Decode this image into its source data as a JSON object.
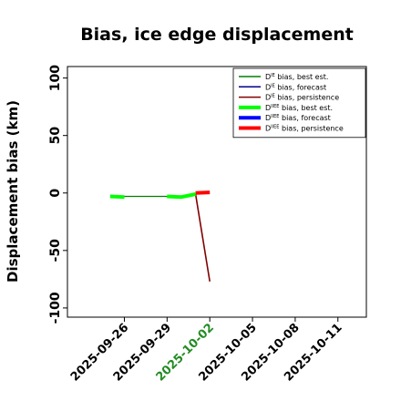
{
  "chart_data": {
    "type": "line",
    "title": "Bias, ice edge displacement",
    "ylabel": "Displacement bias (km)",
    "xlabel": "",
    "ylim": [
      -108,
      110
    ],
    "yticks": [
      -100,
      -50,
      0,
      50,
      100
    ],
    "xlim": [
      "2025-09-22",
      "2025-10-13"
    ],
    "xticks": [
      {
        "date": "2025-09-26",
        "label": "2025-09-26",
        "color": "#000000"
      },
      {
        "date": "2025-09-29",
        "label": "2025-09-29",
        "color": "#000000"
      },
      {
        "date": "2025-10-02",
        "label": "2025-10-02",
        "color": "#228b22"
      },
      {
        "date": "2025-10-05",
        "label": "2025-10-05",
        "color": "#000000"
      },
      {
        "date": "2025-10-08",
        "label": "2025-10-08",
        "color": "#000000"
      },
      {
        "date": "2025-10-11",
        "label": "2025-10-11",
        "color": "#000000"
      }
    ],
    "grid": false,
    "legend_position": "top-right",
    "series": [
      {
        "name": "D^IE bias, best est.",
        "color": "#008000",
        "width": 1.2,
        "points": [
          [
            "2025-09-25",
            -3
          ],
          [
            "2025-09-30",
            -3
          ],
          [
            "2025-10-01",
            -1.5
          ]
        ]
      },
      {
        "name": "D^IE bias, forecast",
        "color": "#00008b",
        "width": 1.2,
        "points": []
      },
      {
        "name": "D^IE bias, persistence",
        "color": "#800000",
        "width": 1.6,
        "points": [
          [
            "2025-10-01",
            -1
          ],
          [
            "2025-10-02",
            -77
          ]
        ]
      },
      {
        "name": "D^IIEE bias, best est.",
        "color": "#00ff00",
        "width": 4,
        "segments": [
          [
            [
              "2025-09-25",
              -3
            ],
            [
              "2025-09-26",
              -3.5
            ]
          ],
          [
            [
              "2025-09-29",
              -3
            ],
            [
              "2025-09-30",
              -3.5
            ],
            [
              "2025-10-01",
              -1
            ]
          ]
        ]
      },
      {
        "name": "D^IIEE bias, forecast",
        "color": "#0000ff",
        "width": 4,
        "points": []
      },
      {
        "name": "D^IIEE bias, persistence",
        "color": "#ff0000",
        "width": 4,
        "points": [
          [
            "2025-10-01",
            0
          ],
          [
            "2025-10-02",
            0.5
          ]
        ]
      }
    ],
    "legend": [
      {
        "sup": "IE",
        "text": " bias, best est.",
        "color": "#008000",
        "width": 1.5
      },
      {
        "sup": "IE",
        "text": " bias, forecast",
        "color": "#00008b",
        "width": 1.5
      },
      {
        "sup": "IE",
        "text": " bias, persistence",
        "color": "#800000",
        "width": 1.5
      },
      {
        "sup": "IIEE",
        "text": " bias, best est.",
        "color": "#00ff00",
        "width": 4
      },
      {
        "sup": "IIEE",
        "text": " bias, forecast",
        "color": "#0000ff",
        "width": 4
      },
      {
        "sup": "IIEE",
        "text": " bias, persistence",
        "color": "#ff0000",
        "width": 4
      }
    ],
    "legend_prefix": "D"
  }
}
